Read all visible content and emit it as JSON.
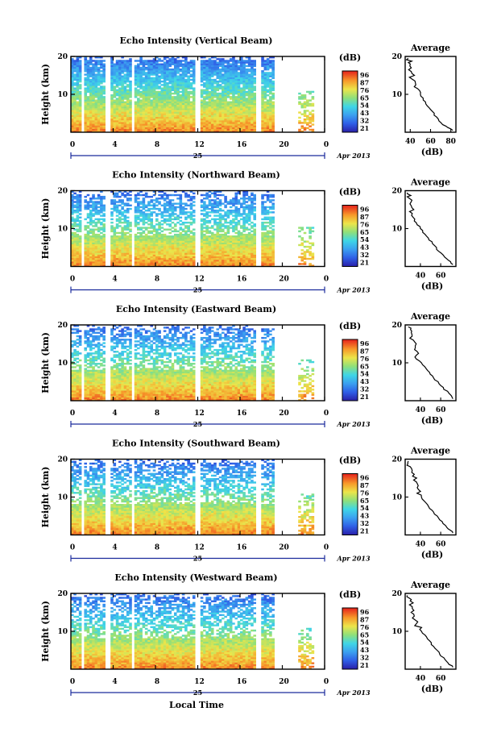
{
  "chart_data": [
    {
      "type": "heatmap",
      "title": "Echo Intensity (Vertical Beam)",
      "ylabel": "Height (km)",
      "x_ticks": [
        "0",
        "4",
        "8",
        "12",
        "16",
        "20",
        "0"
      ],
      "y_ticks": [
        "20",
        "10"
      ],
      "xlim": [
        0,
        24
      ],
      "ylim": [
        0,
        20
      ],
      "date_label": "25",
      "month_label": "Apr 2013",
      "colorbar_unit": "(dB)",
      "colorbar_ticks": [
        "96",
        "87",
        "76",
        "65",
        "54",
        "43",
        "32",
        "21"
      ],
      "colorbar_range": [
        21,
        96
      ],
      "profile": {
        "title": "Average",
        "xlabel": "(dB)",
        "x_ticks": [
          "40",
          "60",
          "80"
        ],
        "xlim": [
          35,
          85
        ],
        "y": [
          0.5,
          2,
          4,
          6,
          8,
          10,
          12,
          14,
          16,
          18,
          19.5
        ],
        "x": [
          82,
          72,
          66,
          60,
          55,
          50,
          44,
          42,
          41,
          40,
          38
        ]
      }
    },
    {
      "type": "heatmap",
      "title": "Echo Intensity (Northward Beam)",
      "ylabel": "Height (km)",
      "x_ticks": [
        "0",
        "4",
        "8",
        "12",
        "16",
        "20",
        "0"
      ],
      "y_ticks": [
        "20",
        "10"
      ],
      "xlim": [
        0,
        24
      ],
      "ylim": [
        0,
        20
      ],
      "date_label": "25",
      "month_label": "Apr 2013",
      "colorbar_unit": "(dB)",
      "colorbar_ticks": [
        "96",
        "87",
        "76",
        "65",
        "54",
        "43",
        "32",
        "21"
      ],
      "colorbar_range": [
        21,
        96
      ],
      "profile": {
        "title": "Average",
        "xlabel": "(dB)",
        "x_ticks": [
          "40",
          "60"
        ],
        "xlim": [
          25,
          75
        ],
        "y": [
          0.5,
          2,
          4,
          6,
          8,
          10,
          12,
          14,
          16,
          18,
          19.5
        ],
        "x": [
          72,
          66,
          58,
          52,
          46,
          40,
          34,
          32,
          31,
          29,
          27
        ]
      }
    },
    {
      "type": "heatmap",
      "title": "Echo Intensity (Eastward Beam)",
      "ylabel": "Height (km)",
      "x_ticks": [
        "0",
        "4",
        "8",
        "12",
        "16",
        "20",
        "0"
      ],
      "y_ticks": [
        "20",
        "10"
      ],
      "xlim": [
        0,
        24
      ],
      "ylim": [
        0,
        20
      ],
      "date_label": "25",
      "month_label": "Apr 2013",
      "colorbar_unit": "(dB)",
      "colorbar_ticks": [
        "96",
        "87",
        "76",
        "65",
        "54",
        "43",
        "32",
        "21"
      ],
      "colorbar_range": [
        21,
        96
      ],
      "profile": {
        "title": "Average",
        "xlabel": "(dB)",
        "x_ticks": [
          "40",
          "60"
        ],
        "xlim": [
          25,
          75
        ],
        "y": [
          0.5,
          2,
          4,
          6,
          8,
          10,
          12,
          14,
          16,
          18,
          19.5
        ],
        "x": [
          72,
          68,
          60,
          53,
          47,
          41,
          36,
          35,
          33,
          31,
          28
        ]
      }
    },
    {
      "type": "heatmap",
      "title": "Echo Intensity (Southward Beam)",
      "ylabel": "Height (km)",
      "x_ticks": [
        "0",
        "4",
        "8",
        "12",
        "16",
        "20",
        "0"
      ],
      "y_ticks": [
        "20",
        "10"
      ],
      "xlim": [
        0,
        24
      ],
      "ylim": [
        0,
        20
      ],
      "date_label": "25",
      "month_label": "Apr 2013",
      "colorbar_unit": "(dB)",
      "colorbar_ticks": [
        "96",
        "87",
        "76",
        "65",
        "54",
        "43",
        "32",
        "21"
      ],
      "colorbar_range": [
        21,
        96
      ],
      "profile": {
        "title": "Average",
        "xlabel": "(dB)",
        "x_ticks": [
          "40",
          "60"
        ],
        "xlim": [
          25,
          75
        ],
        "y": [
          0.5,
          2,
          4,
          6,
          8,
          10,
          12,
          14,
          16,
          18,
          19.5
        ],
        "x": [
          72,
          66,
          59,
          53,
          47,
          41,
          38,
          36,
          34,
          30,
          28
        ]
      }
    },
    {
      "type": "heatmap",
      "title": "Echo Intensity (Westward Beam)",
      "ylabel": "Height (km)",
      "x_ticks": [
        "0",
        "4",
        "8",
        "12",
        "16",
        "20",
        "0"
      ],
      "y_ticks": [
        "20",
        "10"
      ],
      "xlim": [
        0,
        24
      ],
      "ylim": [
        0,
        20
      ],
      "date_label": "25",
      "month_label": "Apr 2013",
      "colorbar_unit": "(dB)",
      "colorbar_ticks": [
        "96",
        "87",
        "76",
        "65",
        "54",
        "43",
        "32",
        "21"
      ],
      "colorbar_range": [
        21,
        96
      ],
      "profile": {
        "title": "Average",
        "xlabel": "(dB)",
        "x_ticks": [
          "40",
          "60"
        ],
        "xlim": [
          25,
          75
        ],
        "y": [
          0.5,
          2,
          4,
          6,
          8,
          10,
          12,
          14,
          16,
          18,
          19.5
        ],
        "x": [
          72,
          66,
          59,
          53,
          47,
          41,
          36,
          34,
          32,
          30,
          27
        ]
      }
    }
  ],
  "xlabel": "Local Time"
}
